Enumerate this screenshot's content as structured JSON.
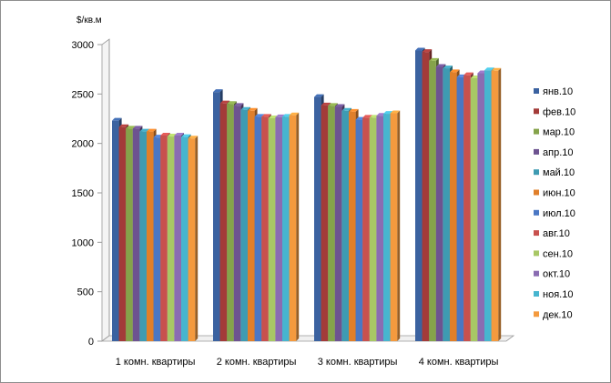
{
  "chart_data": {
    "type": "bar",
    "ylabel": "$/кв.м",
    "ylim": [
      0,
      3000
    ],
    "yticks": [
      0,
      500,
      1000,
      1500,
      2000,
      2500,
      3000
    ],
    "grid": false,
    "legend_position": "right",
    "categories": [
      "1 комн. квартиры",
      "2 комн. квартиры",
      "3 комн. квартиры",
      "4 комн. квартиры"
    ],
    "series": [
      {
        "name": "янв.10",
        "color": "#3b62a0",
        "values": [
          2230,
          2520,
          2470,
          2940
        ]
      },
      {
        "name": "фев.10",
        "color": "#a33b39",
        "values": [
          2165,
          2405,
          2385,
          2925
        ]
      },
      {
        "name": "мар.10",
        "color": "#85a34a",
        "values": [
          2150,
          2400,
          2380,
          2835
        ]
      },
      {
        "name": "апр.10",
        "color": "#6d5390",
        "values": [
          2150,
          2380,
          2370,
          2775
        ]
      },
      {
        "name": "май.10",
        "color": "#3e9bb2",
        "values": [
          2120,
          2340,
          2330,
          2760
        ]
      },
      {
        "name": "июн.10",
        "color": "#e07f2a",
        "values": [
          2120,
          2330,
          2320,
          2720
        ]
      },
      {
        "name": "июл.10",
        "color": "#4a77c4",
        "values": [
          2060,
          2270,
          2240,
          2670
        ]
      },
      {
        "name": "авг.10",
        "color": "#c8514e",
        "values": [
          2080,
          2270,
          2260,
          2690
        ]
      },
      {
        "name": "сен.10",
        "color": "#a8c765",
        "values": [
          2070,
          2255,
          2260,
          2660
        ]
      },
      {
        "name": "окт.10",
        "color": "#8a6cb2",
        "values": [
          2080,
          2265,
          2280,
          2710
        ]
      },
      {
        "name": "ноя.10",
        "color": "#47b5cf",
        "values": [
          2065,
          2270,
          2300,
          2740
        ]
      },
      {
        "name": "дек.10",
        "color": "#f49a3e",
        "values": [
          2050,
          2285,
          2305,
          2735
        ]
      }
    ]
  }
}
